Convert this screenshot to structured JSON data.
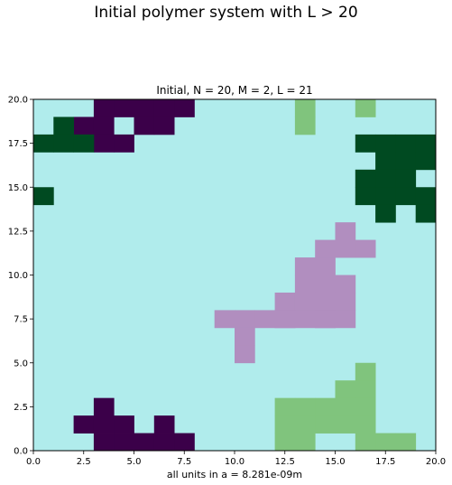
{
  "figure": {
    "suptitle": "Initial polymer system with L > 20",
    "colors": {
      "background": "#b0ecec",
      "dark_purple": "#3b0049",
      "dark_green": "#004a21",
      "lavender": "#b18ebf",
      "light_green": "#80c47d"
    }
  },
  "chart_data": {
    "type": "heatmap",
    "title": "Initial, N = 20, M = 2, L = 21",
    "xlabel": "all units in a = 8.281e-09m",
    "ylabel": "",
    "xlim": [
      0,
      20
    ],
    "ylim": [
      0,
      20
    ],
    "grid": false,
    "xticks": [
      "0.0",
      "2.5",
      "5.0",
      "7.5",
      "10.0",
      "12.5",
      "15.0",
      "17.5",
      "20.0"
    ],
    "yticks": [
      "0.0",
      "2.5",
      "5.0",
      "7.5",
      "10.0",
      "12.5",
      "15.0",
      "17.5",
      "20.0"
    ],
    "cell_size": 20,
    "background_value": 0,
    "value_colors": {
      "0": "#b0ecec",
      "1": "#3b0049",
      "2": "#004a21",
      "3": "#b18ebf",
      "4": "#80c47d"
    },
    "cells_x0_y0_value": [
      [
        3,
        19,
        1
      ],
      [
        4,
        19,
        1
      ],
      [
        5,
        19,
        1
      ],
      [
        6,
        19,
        1
      ],
      [
        7,
        19,
        1
      ],
      [
        2,
        18,
        1
      ],
      [
        3,
        18,
        1
      ],
      [
        5,
        18,
        1
      ],
      [
        6,
        18,
        1
      ],
      [
        3,
        17,
        1
      ],
      [
        4,
        17,
        1
      ],
      [
        3,
        0,
        1
      ],
      [
        4,
        0,
        1
      ],
      [
        5,
        0,
        1
      ],
      [
        6,
        0,
        1
      ],
      [
        7,
        0,
        1
      ],
      [
        2,
        1,
        1
      ],
      [
        3,
        1,
        1
      ],
      [
        4,
        1,
        1
      ],
      [
        6,
        1,
        1
      ],
      [
        3,
        2,
        1
      ],
      [
        1,
        18,
        2
      ],
      [
        0,
        17,
        2
      ],
      [
        1,
        17,
        2
      ],
      [
        2,
        17,
        2
      ],
      [
        0,
        14,
        2
      ],
      [
        16,
        17,
        2
      ],
      [
        17,
        17,
        2
      ],
      [
        18,
        17,
        2
      ],
      [
        19,
        17,
        2
      ],
      [
        17,
        16,
        2
      ],
      [
        18,
        16,
        2
      ],
      [
        19,
        16,
        2
      ],
      [
        16,
        15,
        2
      ],
      [
        17,
        15,
        2
      ],
      [
        18,
        15,
        2
      ],
      [
        16,
        14,
        2
      ],
      [
        17,
        14,
        2
      ],
      [
        18,
        14,
        2
      ],
      [
        19,
        14,
        2
      ],
      [
        17,
        13,
        2
      ],
      [
        19,
        13,
        2
      ],
      [
        15,
        12,
        3
      ],
      [
        14,
        11,
        3
      ],
      [
        15,
        11,
        3
      ],
      [
        16,
        11,
        3
      ],
      [
        13,
        10,
        3
      ],
      [
        14,
        10,
        3
      ],
      [
        13,
        9,
        3
      ],
      [
        14,
        9,
        3
      ],
      [
        15,
        9,
        3
      ],
      [
        12,
        8,
        3
      ],
      [
        13,
        8,
        3
      ],
      [
        14,
        8,
        3
      ],
      [
        15,
        8,
        3
      ],
      [
        12,
        7,
        3
      ],
      [
        13,
        7,
        3
      ],
      [
        14,
        7,
        3
      ],
      [
        9,
        7,
        3
      ],
      [
        10,
        7,
        3
      ],
      [
        11,
        7,
        3
      ],
      [
        12,
        7,
        3
      ],
      [
        14,
        7,
        3
      ],
      [
        15,
        7,
        3
      ],
      [
        10,
        6,
        3
      ],
      [
        10,
        5,
        3
      ],
      [
        13,
        19,
        4
      ],
      [
        16,
        19,
        4
      ],
      [
        13,
        18,
        4
      ],
      [
        16,
        4,
        4
      ],
      [
        15,
        3,
        4
      ],
      [
        16,
        3,
        4
      ],
      [
        12,
        2,
        4
      ],
      [
        13,
        2,
        4
      ],
      [
        14,
        2,
        4
      ],
      [
        15,
        2,
        4
      ],
      [
        16,
        2,
        4
      ],
      [
        12,
        1,
        4
      ],
      [
        13,
        1,
        4
      ],
      [
        14,
        1,
        4
      ],
      [
        15,
        1,
        4
      ],
      [
        16,
        1,
        4
      ],
      [
        12,
        0,
        4
      ],
      [
        13,
        0,
        4
      ],
      [
        16,
        0,
        4
      ],
      [
        17,
        0,
        4
      ],
      [
        18,
        0,
        4
      ]
    ]
  }
}
